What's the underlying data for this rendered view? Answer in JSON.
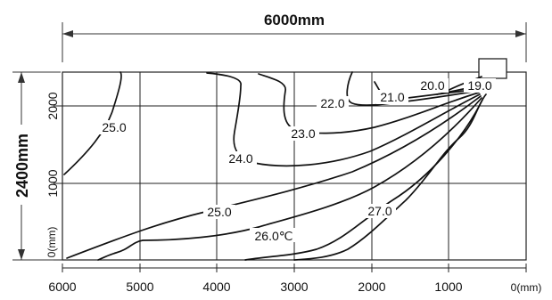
{
  "title": "6000mm",
  "height_label": "2400mm",
  "x_ticks": [
    "6000",
    "5000",
    "4000",
    "3000",
    "2000",
    "1000"
  ],
  "x_unit": "0(mm)",
  "y_ticks": [
    "2000",
    "1000"
  ],
  "y_unit": "0(mm)",
  "contours": [
    {
      "id": "19",
      "label": "19.0"
    },
    {
      "id": "20",
      "label": "20.0"
    },
    {
      "id": "21",
      "label": "21.0"
    },
    {
      "id": "22",
      "label": "22.0"
    },
    {
      "id": "23",
      "label": "23.0"
    },
    {
      "id": "24",
      "label": "24.0"
    },
    {
      "id": "25a",
      "label": "25.0"
    },
    {
      "id": "25b",
      "label": "25.0"
    },
    {
      "id": "26",
      "label": "26.0℃"
    },
    {
      "id": "27",
      "label": "27.0"
    }
  ]
}
